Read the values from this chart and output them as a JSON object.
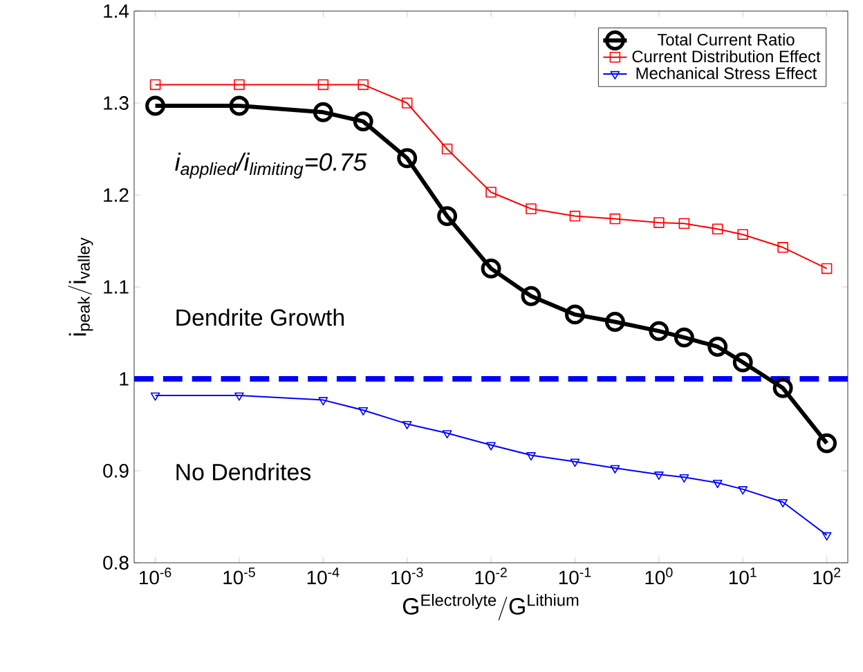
{
  "chart_data": {
    "type": "line",
    "xlabel": "\\mathrm{G}^{\\mathrm{Electrolyte}}/\\mathrm{G}^{\\mathrm{Lithium}}",
    "ylabel": "\\mathrm{i}_{\\mathrm{peak}}/\\mathrm{i}_{\\mathrm{valley}}",
    "x": [
      1e-06,
      1e-05,
      0.0001,
      0.0003,
      0.001,
      0.003,
      0.01,
      0.03,
      0.1,
      0.3,
      1,
      2,
      5,
      10,
      30,
      100
    ],
    "series": [
      {
        "name": "Total Current Ratio",
        "color": "#000000",
        "marker": "circle",
        "values": [
          1.297,
          1.297,
          1.29,
          1.28,
          1.24,
          1.177,
          1.12,
          1.09,
          1.07,
          1.062,
          1.052,
          1.045,
          1.035,
          1.018,
          0.99,
          0.93
        ]
      },
      {
        "name": "Current Distribution Effect",
        "color": "#ff0000",
        "marker": "square",
        "values": [
          1.32,
          1.32,
          1.32,
          1.32,
          1.3,
          1.25,
          1.203,
          1.185,
          1.177,
          1.174,
          1.17,
          1.169,
          1.163,
          1.157,
          1.143,
          1.12
        ]
      },
      {
        "name": "Mechanical Stress Effect",
        "color": "#0000ff",
        "marker": "triangle",
        "values": [
          0.982,
          0.982,
          0.977,
          0.966,
          0.951,
          0.941,
          0.928,
          0.917,
          0.91,
          0.903,
          0.896,
          0.893,
          0.887,
          0.88,
          0.866,
          0.83
        ]
      }
    ],
    "log": "x",
    "xlim": [
      5.6e-07,
      178
    ],
    "ylim": [
      0.8,
      1.4
    ],
    "xticks": [
      {
        "value": 1e-06,
        "label": "10$^{-6}$"
      },
      {
        "value": 1e-05,
        "label": "10$^{-5}$"
      },
      {
        "value": 0.0001,
        "label": "10$^{-4}$"
      },
      {
        "value": 0.001,
        "label": "10$^{-3}$"
      },
      {
        "value": 0.01,
        "label": "10$^{-2}$"
      },
      {
        "value": 0.1,
        "label": "10$^{-1}$"
      },
      {
        "value": 1,
        "label": "10$^{0}$"
      },
      {
        "value": 10,
        "label": "10$^{1}$"
      },
      {
        "value": 100,
        "label": "10$^{2}$"
      }
    ],
    "yticks": [
      0.8,
      0.9,
      1,
      1.1,
      1.2,
      1.3,
      1.4
    ],
    "ref_lines": [
      {
        "axis": "y",
        "value": 1,
        "color": "#0000ff",
        "line_style": "dashed"
      }
    ],
    "annotations": [
      "i$_{applied}$/i$_{limiting}$=0.75",
      "Dendrite Growth",
      "No Dendrites"
    ],
    "legend": "top right",
    "grid": false
  }
}
